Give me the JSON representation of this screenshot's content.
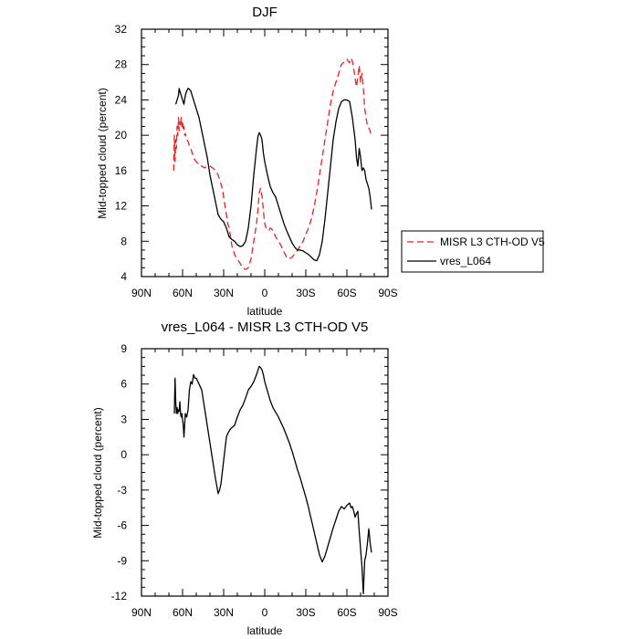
{
  "chart_data": [
    {
      "type": "line",
      "title": "DJF",
      "xlabel": "latitude",
      "ylabel": "Mid-topped cloud (percent)",
      "xlim": [
        90,
        -90
      ],
      "ylim": [
        4,
        32
      ],
      "xticks": [
        90,
        60,
        30,
        0,
        -30,
        -60,
        -90
      ],
      "xtick_labels": [
        "90N",
        "60N",
        "30N",
        "0",
        "30S",
        "60S",
        "90S"
      ],
      "yticks": [
        4,
        8,
        12,
        16,
        20,
        24,
        28,
        32
      ],
      "ytick_labels": [
        "4",
        "8",
        "12",
        "16",
        "20",
        "24",
        "28",
        "32"
      ],
      "grid": false,
      "legend_position": "right",
      "series": [
        {
          "name": "MISR L3 CTH-OD V5",
          "color": "#e8231f",
          "dash": "dashed",
          "x": [
            66.5,
            66,
            65.5,
            65,
            64.5,
            64,
            63.5,
            63,
            62.5,
            62,
            61.5,
            61,
            60.5,
            60,
            59.5,
            59,
            58.5,
            58,
            57,
            56,
            55,
            54,
            53,
            52,
            51,
            50,
            48,
            46,
            44,
            42,
            40,
            38,
            36,
            34,
            33,
            32,
            31,
            30,
            29,
            28,
            27,
            26,
            25,
            24,
            22,
            20,
            18,
            16,
            14,
            12,
            10,
            8,
            6,
            5,
            4,
            3,
            2,
            1,
            0,
            -1,
            -2,
            -3,
            -4,
            -5,
            -6,
            -8,
            -10,
            -12,
            -14,
            -16,
            -18,
            -20,
            -22,
            -24,
            -26,
            -28,
            -30,
            -32,
            -34,
            -36,
            -38,
            -40,
            -42,
            -44,
            -46,
            -48,
            -50,
            -52,
            -54,
            -56,
            -58,
            -60,
            -62,
            -63,
            -64,
            -65,
            -66,
            -67,
            -68,
            -69,
            -70,
            -71,
            -72,
            -73,
            -74,
            -75,
            -76,
            -77,
            -78
          ],
          "values": [
            16,
            20,
            17,
            19.5,
            18.5,
            21,
            20,
            22,
            20.5,
            21.5,
            21,
            22,
            21,
            21.5,
            20.5,
            21,
            20,
            20.2,
            19.5,
            19.3,
            18.8,
            18.5,
            18,
            17.5,
            17.2,
            17,
            16.7,
            16.5,
            16.3,
            16.5,
            16.5,
            16.3,
            16,
            15.5,
            15,
            14.5,
            14,
            13,
            12,
            11,
            10,
            9.5,
            8.5,
            7.5,
            6.5,
            6,
            5.5,
            5,
            4.8,
            5,
            6,
            8,
            10,
            11.5,
            13.5,
            14,
            13.2,
            11.5,
            10,
            9.5,
            9.3,
            9.2,
            9.5,
            9.4,
            9.2,
            8.5,
            8,
            7.5,
            6.8,
            6.2,
            6,
            6.2,
            6.6,
            7,
            7.5,
            8,
            8.8,
            9.5,
            10.5,
            11.8,
            13.5,
            15.5,
            17.5,
            19.5,
            21.5,
            23.5,
            25,
            26,
            27,
            28,
            28.3,
            28.6,
            28.2,
            28.7,
            28.4,
            27.5,
            26.5,
            25.5,
            26.5,
            27.9,
            26,
            27,
            25.5,
            23,
            22,
            21,
            20.8,
            20.5,
            19.8
          ]
        },
        {
          "name": "vres_L064",
          "color": "#000000",
          "dash": "solid",
          "x": [
            65,
            64,
            63,
            62.5,
            62,
            61,
            60,
            59,
            58,
            57,
            56,
            55,
            54,
            53,
            52,
            51,
            50,
            48,
            46,
            44,
            42,
            40,
            38,
            36,
            34,
            32,
            30,
            28,
            26,
            24,
            22,
            20,
            18,
            16,
            14,
            12,
            10,
            8,
            6,
            5,
            4,
            3,
            2,
            1,
            0,
            -2,
            -4,
            -6,
            -8,
            -10,
            -12,
            -14,
            -16,
            -18,
            -20,
            -22,
            -24,
            -26,
            -28,
            -30,
            -32,
            -34,
            -36,
            -38,
            -40,
            -42,
            -44,
            -46,
            -48,
            -50,
            -52,
            -54,
            -56,
            -58,
            -60,
            -62,
            -64,
            -66,
            -67,
            -68,
            -69,
            -70,
            -71,
            -72,
            -73,
            -74,
            -75,
            -76,
            -77,
            -78
          ],
          "values": [
            23.5,
            24,
            24.5,
            25.3,
            25,
            24.5,
            24,
            23.5,
            24.5,
            25,
            25.3,
            25.2,
            25,
            24.5,
            24,
            23.5,
            23,
            22,
            20.5,
            19,
            17.5,
            15.5,
            14,
            12.5,
            11,
            10.5,
            10.2,
            9.5,
            8.5,
            8.2,
            8,
            7.6,
            7.4,
            7.5,
            8,
            9.5,
            12,
            15.5,
            18.5,
            19.8,
            20.3,
            20,
            19.5,
            18,
            17,
            15.5,
            14.2,
            13.5,
            13,
            12,
            11,
            10,
            9.2,
            8.5,
            7.8,
            7.3,
            7,
            7,
            6.9,
            6.7,
            6.5,
            6.2,
            5.9,
            5.8,
            6.5,
            8,
            10.5,
            13.5,
            16.5,
            19.5,
            21.5,
            23,
            23.8,
            24,
            24,
            23.8,
            22,
            19.5,
            17.5,
            16.5,
            18.5,
            17.5,
            16,
            16.3,
            16,
            15,
            14.5,
            14,
            13,
            11.6
          ]
        }
      ]
    },
    {
      "type": "line",
      "title": "vres_L064 - MISR L3 CTH-OD V5",
      "xlabel": "latitude",
      "ylabel": "Mid-topped cloud (percent)",
      "xlim": [
        90,
        -90
      ],
      "ylim": [
        -12,
        9
      ],
      "xticks": [
        90,
        60,
        30,
        0,
        -30,
        -60,
        -90
      ],
      "xtick_labels": [
        "90N",
        "60N",
        "30N",
        "0",
        "30S",
        "60S",
        "90S"
      ],
      "yticks": [
        -12,
        -9,
        -6,
        -3,
        0,
        3,
        6,
        9
      ],
      "ytick_labels": [
        "-12",
        "-9",
        "-6",
        "-3",
        "0",
        "3",
        "6",
        "9"
      ],
      "grid": false,
      "series": [
        {
          "color": "#000000",
          "dash": "solid",
          "x": [
            66,
            65.5,
            65,
            64.5,
            64,
            63.5,
            63,
            62.5,
            62,
            61.5,
            61,
            60.5,
            60,
            59.5,
            59,
            58.5,
            58,
            57,
            56,
            55,
            54,
            53,
            52,
            51,
            50,
            48,
            46,
            44,
            42,
            40,
            38,
            36,
            34,
            33,
            32,
            31,
            30,
            29,
            28,
            27,
            26,
            25,
            24,
            22,
            20,
            18,
            16,
            14,
            12,
            10,
            8,
            6,
            4,
            3,
            2,
            1,
            0,
            -1,
            -2,
            -3,
            -4,
            -5,
            -6,
            -7,
            -8,
            -10,
            -12,
            -14,
            -16,
            -18,
            -20,
            -22,
            -24,
            -26,
            -28,
            -30,
            -32,
            -34,
            -36,
            -38,
            -40,
            -42,
            -44,
            -46,
            -48,
            -50,
            -52,
            -54,
            -56,
            -58,
            -60,
            -62,
            -63,
            -64,
            -65,
            -66,
            -67,
            -68,
            -69,
            -70,
            -71,
            -72,
            -73,
            -74,
            -75,
            -76,
            -77,
            -78
          ],
          "values": [
            3.5,
            6.5,
            4.5,
            3.5,
            4,
            3.5,
            3.8,
            3.7,
            4.5,
            3.5,
            3.2,
            3.5,
            3,
            2.5,
            1.5,
            2.5,
            3.5,
            3.2,
            3.8,
            5.5,
            6.2,
            6,
            6.8,
            6.5,
            6.5,
            6,
            5.5,
            4,
            2.5,
            1,
            -0.5,
            -2,
            -3.3,
            -3,
            -2.5,
            -1.5,
            -0.5,
            0.5,
            1.5,
            1.8,
            2,
            2.2,
            2.3,
            2.5,
            3.2,
            3.8,
            4.2,
            4.8,
            5.5,
            5.8,
            6.2,
            6.8,
            7.5,
            7.4,
            7.2,
            6.8,
            6.2,
            5.8,
            5.4,
            5,
            4.6,
            4.3,
            4,
            3.8,
            3.6,
            3.2,
            2.7,
            2.2,
            1.6,
            1,
            0.3,
            -0.5,
            -1.3,
            -2,
            -2.8,
            -3.6,
            -4.5,
            -5.5,
            -6.5,
            -7.5,
            -8.5,
            -9.1,
            -8.6,
            -7.8,
            -7,
            -6.2,
            -5.5,
            -4.8,
            -4.4,
            -4.6,
            -4.3,
            -4.1,
            -4.5,
            -4.4,
            -4.8,
            -5.3,
            -5,
            -4.8,
            -6.5,
            -8,
            -9.5,
            -11.8,
            -9,
            -8.5,
            -7.5,
            -6.3,
            -7.5,
            -8.3
          ]
        }
      ]
    }
  ]
}
